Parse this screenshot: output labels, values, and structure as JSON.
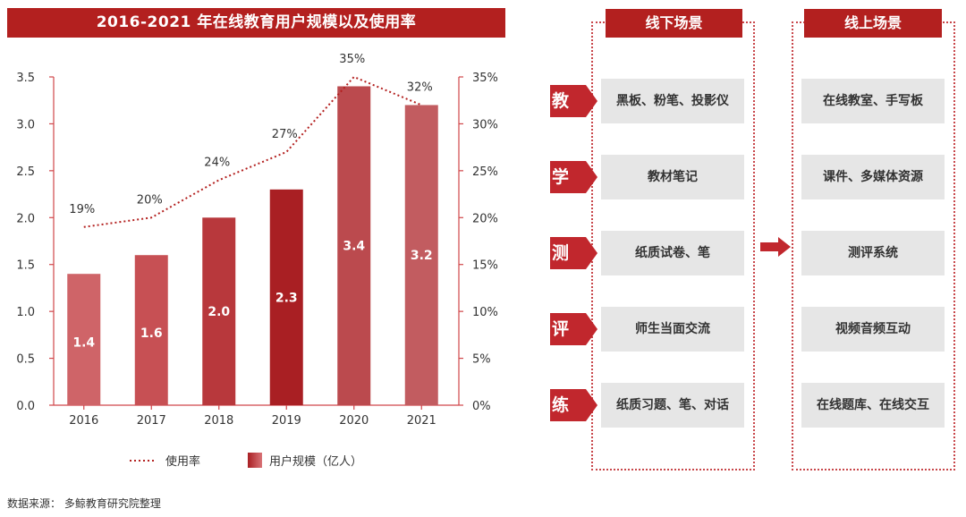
{
  "title": "2016-2021 年在线教育用户规模以及使用率",
  "chart_data": {
    "type": "bar",
    "title": "2016-2021 年在线教育用户规模以及使用率",
    "categories": [
      "2016",
      "2017",
      "2018",
      "2019",
      "2020",
      "2021"
    ],
    "series": [
      {
        "name": "用户规模（亿人）",
        "kind": "bar",
        "axis": "left",
        "values": [
          1.4,
          1.6,
          2.0,
          2.3,
          3.4,
          3.2
        ],
        "labels": [
          "1.4",
          "1.6",
          "2.0",
          "2.3",
          "3.4",
          "3.2"
        ],
        "colors": [
          "#cf6468",
          "#c75054",
          "#b8383c",
          "#a91f23",
          "#bb4a4e",
          "#c25c60"
        ]
      },
      {
        "name": "使用率",
        "kind": "line",
        "axis": "right",
        "values": [
          19,
          20,
          24,
          27,
          35,
          32
        ],
        "labels": [
          "19%",
          "20%",
          "24%",
          "27%",
          "35%",
          "32%"
        ]
      }
    ],
    "y_left": {
      "range": [
        0,
        3.5
      ],
      "ticks": [
        "0.0",
        "0.5",
        "1.0",
        "1.5",
        "2.0",
        "2.5",
        "3.0",
        "3.5"
      ]
    },
    "y_right": {
      "range": [
        0,
        35
      ],
      "ticks": [
        "0%",
        "5%",
        "10%",
        "15%",
        "20%",
        "25%",
        "30%",
        "35%"
      ]
    },
    "grid": false,
    "legend": "bottom",
    "colors": {
      "axis": "#d0464a",
      "line": "#b3201f",
      "text": "#333333"
    }
  },
  "legend": {
    "line_label": "使用率",
    "bar_label": "用户规模（亿人）"
  },
  "offline": {
    "header": "线下场景",
    "items": [
      "黑板、粉笔、投影仪",
      "教材笔记",
      "纸质试卷、笔",
      "师生当面交流",
      "纸质习题、笔、对话"
    ]
  },
  "online": {
    "header": "线上场景",
    "items": [
      "在线教室、手写板",
      "课件、多媒体资源",
      "测评系统",
      "视频音频互动",
      "在线题库、在线交互"
    ]
  },
  "categories": [
    "教",
    "学",
    "测",
    "评",
    "练"
  ],
  "arrow_icon": "right-arrow-icon",
  "source": "数据来源：  多鲸教育研究院整理",
  "colors": {
    "brand_red": "#b3201f",
    "cell_gray": "#e6e6e6"
  }
}
